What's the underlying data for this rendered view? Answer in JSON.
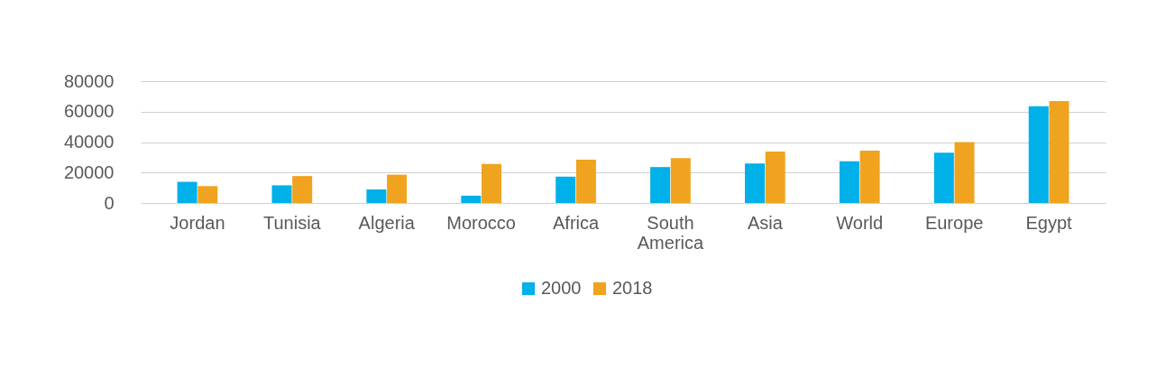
{
  "chart_data": {
    "type": "bar",
    "categories": [
      "Jordan",
      "Tunisia",
      "Algeria",
      "Morocco",
      "Africa",
      "South America",
      "Asia",
      "World",
      "Europe",
      "Egypt"
    ],
    "series": [
      {
        "name": "2000",
        "color": "#00b0e8",
        "values": [
          13900,
          11600,
          8900,
          4800,
          17300,
          23600,
          26000,
          27400,
          33100,
          63600
        ]
      },
      {
        "name": "2018",
        "color": "#f0a31e",
        "values": [
          11100,
          17700,
          18600,
          25700,
          28400,
          29500,
          33800,
          34300,
          40000,
          66900
        ]
      }
    ],
    "ylim": [
      0,
      80000
    ],
    "yticks": [
      0,
      20000,
      40000,
      60000,
      80000
    ],
    "grid": "y",
    "legend": "bottom"
  }
}
